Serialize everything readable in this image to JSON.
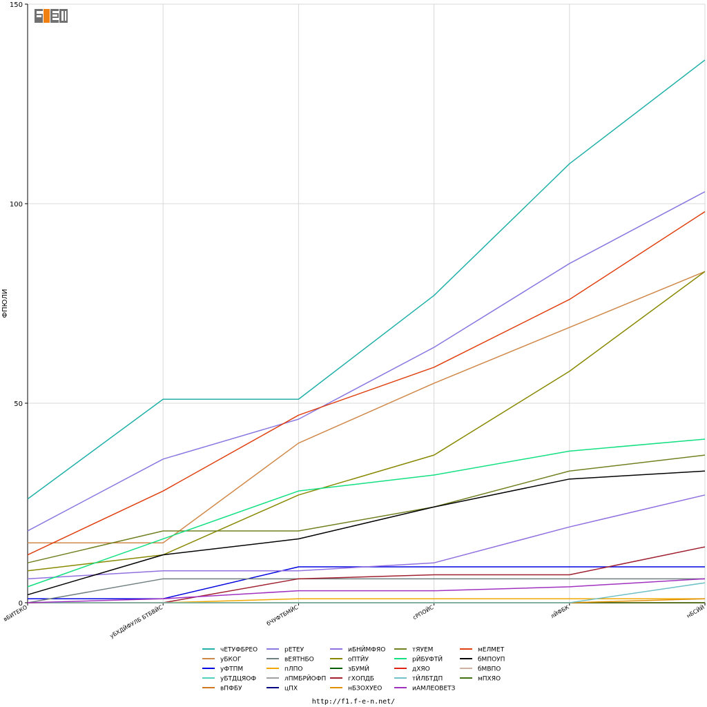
{
  "chart_data": {
    "type": "line",
    "ylabel": "ФПЮЛИ",
    "ylim": [
      0,
      150
    ],
    "yticks": [
      0,
      50,
      100,
      150
    ],
    "grid": true,
    "legend_position": "bottom",
    "categories": [
      "вБИТЕКО",
      "уБХДЙФУЛБ БТБВЙС",
      "бЧУФТБМЙС",
      "сРПОЙС",
      "лЙФБК",
      "нБСЙЙ"
    ],
    "series": [
      {
        "name": "чЕТУФБРЕО",
        "color": "#20b0a8",
        "values": [
          26,
          51,
          51,
          77,
          110,
          136
        ]
      },
      {
        "name": "уБКОГ",
        "color": "#d08848",
        "values": [
          15,
          15,
          40,
          55,
          69,
          83
        ]
      },
      {
        "name": "уФТПМ",
        "color": "#0000e0",
        "values": [
          1,
          1,
          9,
          9,
          9,
          9
        ]
      },
      {
        "name": "уБТДЦЯОФ",
        "color": "#50d0b8",
        "values": [
          0,
          0,
          0,
          0,
          0,
          0
        ]
      },
      {
        "name": "вПФБУ",
        "color": "#d07820",
        "values": [
          0,
          0,
          0,
          0,
          0,
          0
        ]
      },
      {
        "name": "рЕТЕУ",
        "color": "#8878e0",
        "values": [
          18,
          36,
          46,
          64,
          85,
          103
        ]
      },
      {
        "name": "вЕЯТНБО",
        "color": "#708080",
        "values": [
          0,
          6,
          6,
          6,
          6,
          6
        ]
      },
      {
        "name": "пЛПО",
        "color": "#f0a800",
        "values": [
          0,
          0,
          1,
          1,
          1,
          1
        ]
      },
      {
        "name": "лПМБРЙОФП",
        "color": "#a0a0a0",
        "values": [
          0,
          0,
          0,
          0,
          0,
          0
        ]
      },
      {
        "name": "цПХ",
        "color": "#000080",
        "values": [
          0,
          0,
          0,
          0,
          0,
          0
        ]
      },
      {
        "name": "иБНЙМФЯО",
        "color": "#9070e0",
        "values": [
          6,
          8,
          8,
          10,
          19,
          27
        ]
      },
      {
        "name": "оПТЙУ",
        "color": "#888800",
        "values": [
          8,
          12,
          27,
          37,
          58,
          83
        ]
      },
      {
        "name": "зБУМЙ",
        "color": "#006000",
        "values": [
          0,
          0,
          0,
          0,
          0,
          0
        ]
      },
      {
        "name": "гХОПДБ",
        "color": "#a02030",
        "values": [
          0,
          0,
          6,
          7,
          7,
          14
        ]
      },
      {
        "name": "нБЗОХУЕО",
        "color": "#e09000",
        "values": [
          0,
          0,
          0,
          0,
          0,
          1
        ]
      },
      {
        "name": "тЯУЕМ",
        "color": "#708020",
        "values": [
          10,
          18,
          18,
          24,
          33,
          37
        ]
      },
      {
        "name": "рЙБУФТЙ",
        "color": "#10e080",
        "values": [
          4,
          16,
          28,
          32,
          38,
          41
        ]
      },
      {
        "name": "дХЯО",
        "color": "#e02010",
        "values": [
          0,
          0,
          0,
          0,
          0,
          0
        ]
      },
      {
        "name": "тЙЛБТДП",
        "color": "#70c0c8",
        "values": [
          0,
          0,
          0,
          0,
          0,
          5
        ]
      },
      {
        "name": "иАМЛЕОВЕТЗ",
        "color": "#a030c0",
        "values": [
          0,
          1,
          3,
          3,
          4,
          6
        ]
      },
      {
        "name": "мЕЛМЕТ",
        "color": "#e04010",
        "values": [
          12,
          28,
          47,
          59,
          76,
          98
        ]
      },
      {
        "name": "бМПОУП",
        "color": "#000000",
        "values": [
          2,
          12,
          16,
          24,
          31,
          33
        ]
      },
      {
        "name": "бМВПО",
        "color": "#d0b0a0",
        "values": [
          0,
          0,
          0,
          0,
          0,
          0
        ]
      },
      {
        "name": "мПХЯО",
        "color": "#407010",
        "values": [
          0,
          0,
          0,
          0,
          0,
          0
        ]
      }
    ]
  },
  "footer": {
    "url": "http://f1.f-e-n.net/"
  },
  "logo": {
    "text": "F1EN"
  }
}
